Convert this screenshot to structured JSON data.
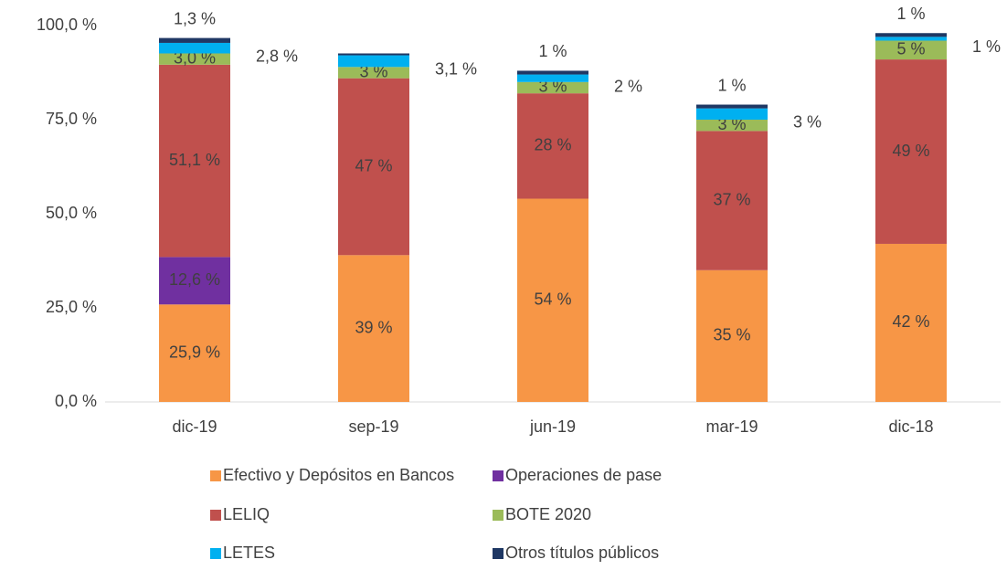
{
  "chart_data": {
    "type": "stacked_bar",
    "categories": [
      "dic-19",
      "sep-19",
      "jun-19",
      "mar-19",
      "dic-18"
    ],
    "series": [
      {
        "name": "Efectivo y Depósitos en Bancos",
        "color": "#f79646",
        "values": [
          25.9,
          39,
          54,
          35,
          42
        ],
        "value_labels": [
          "25,9 %",
          "39 %",
          "54 %",
          "35 %",
          "42 %"
        ]
      },
      {
        "name": "Operaciones de pase",
        "color": "#7030a0",
        "values": [
          12.6,
          null,
          null,
          null,
          null
        ],
        "value_labels": [
          "12,6 %",
          null,
          null,
          null,
          null
        ]
      },
      {
        "name": "LELIQ",
        "color": "#c0504d",
        "values": [
          51.1,
          47,
          28,
          37,
          49
        ],
        "value_labels": [
          "51,1 %",
          "47 %",
          "28 %",
          "37 %",
          "49 %"
        ]
      },
      {
        "name": "BOTE 2020",
        "color": "#9bbb59",
        "values": [
          3.0,
          3,
          3,
          3,
          5
        ],
        "value_labels": [
          "3,0 %",
          "3 %",
          "3 %",
          "3 %",
          "5 %"
        ]
      },
      {
        "name": "LETES",
        "color": "#00b0f0",
        "values": [
          2.8,
          3.1,
          2,
          3,
          1
        ],
        "value_labels": [
          "2,8 %",
          "3,1 %",
          "2 %",
          "3 %",
          "1 %"
        ]
      },
      {
        "name": "Otros títulos públicos",
        "color": "#1f3864",
        "values": [
          1.3,
          0.5,
          1,
          1,
          1
        ],
        "value_labels": [
          "1,3 %",
          null,
          "1 %",
          "1 %",
          "1 %"
        ]
      }
    ],
    "ylim": [
      0,
      100
    ],
    "yticks": [
      {
        "value": 0,
        "label": "0,0 %"
      },
      {
        "value": 25,
        "label": "25,0 %"
      },
      {
        "value": 50,
        "label": "50,0 %"
      },
      {
        "value": 75,
        "label": "75,0 %"
      },
      {
        "value": 100,
        "label": "100,0 %"
      }
    ],
    "grid": false
  }
}
